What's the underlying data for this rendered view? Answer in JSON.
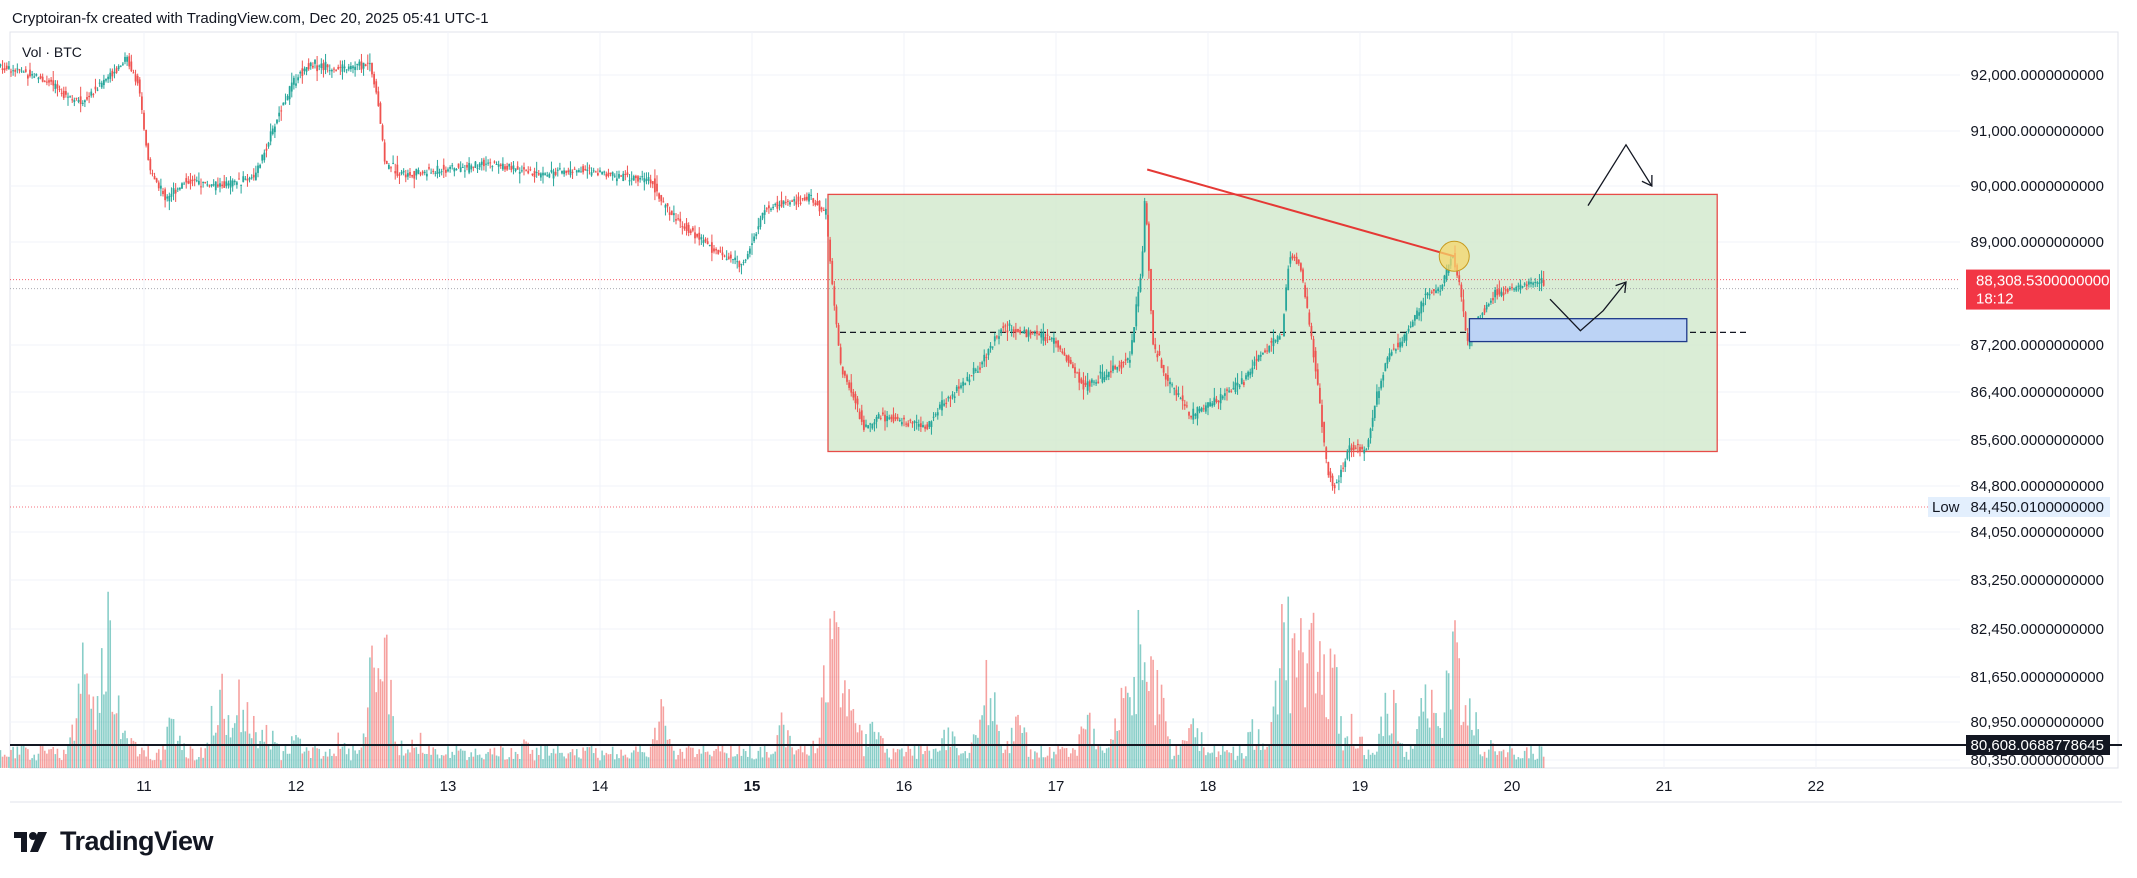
{
  "header": {
    "title": "Cryptoiran-fx created with TradingView.com, Dec 20, 2025 05:41 UTC-1"
  },
  "volume_label": "Vol · BTC",
  "brand": {
    "name": "TradingView"
  },
  "colors": {
    "up": "#26a69a",
    "down": "#ef5350",
    "zone_fill": "#d6ecd2",
    "zone_border": "#e53935",
    "demand_fill": "#bcd3f5",
    "demand_border": "#1e3a8a",
    "price_badge": "#f23645",
    "low_badge": "#e3effd",
    "circle": "#f5d66a"
  },
  "chart_data": {
    "type": "candlestick",
    "symbol": "BTC",
    "x_axis": {
      "ticks": [
        "11",
        "12",
        "13",
        "14",
        "15",
        "16",
        "17",
        "18",
        "19",
        "20",
        "21",
        "22"
      ]
    },
    "y_axis": {
      "ticks": [
        "92,000.0000000000",
        "91,000.0000000000",
        "90,000.0000000000",
        "89,000.0000000000",
        "87,200.0000000000",
        "86,400.0000000000",
        "85,600.0000000000",
        "84,800.0000000000",
        "84,050.0000000000",
        "83,250.0000000000",
        "82,450.0000000000",
        "81,650.0000000000",
        "80,950.0000000000",
        "80,350.0000000000"
      ]
    },
    "last_price": {
      "value": "88,308.5300000000",
      "countdown": "18:12"
    },
    "low": {
      "label": "Low",
      "value": "84,450.0100000000"
    },
    "horizontal_line": {
      "value": "80,608.0688778645"
    },
    "price_path": [
      [
        10.0,
        92200
      ],
      [
        10.3,
        92000
      ],
      [
        10.6,
        91500
      ],
      [
        10.9,
        92300
      ],
      [
        10.97,
        91900
      ],
      [
        11.05,
        90300
      ],
      [
        11.15,
        89800
      ],
      [
        11.3,
        90100
      ],
      [
        11.5,
        90000
      ],
      [
        11.6,
        90050
      ],
      [
        11.75,
        90200
      ],
      [
        11.9,
        91300
      ],
      [
        12.0,
        91900
      ],
      [
        12.1,
        92200
      ],
      [
        12.3,
        92100
      ],
      [
        12.5,
        92200
      ],
      [
        12.55,
        91600
      ],
      [
        12.6,
        90400
      ],
      [
        12.75,
        90200
      ],
      [
        13.0,
        90300
      ],
      [
        13.3,
        90400
      ],
      [
        13.6,
        90200
      ],
      [
        13.9,
        90300
      ],
      [
        14.1,
        90200
      ],
      [
        14.35,
        90100
      ],
      [
        14.45,
        89600
      ],
      [
        14.6,
        89200
      ],
      [
        14.8,
        88800
      ],
      [
        14.95,
        88600
      ],
      [
        15.0,
        88900
      ],
      [
        15.1,
        89600
      ],
      [
        15.25,
        89700
      ],
      [
        15.4,
        89800
      ],
      [
        15.5,
        89500
      ],
      [
        15.55,
        88000
      ],
      [
        15.6,
        86800
      ],
      [
        15.7,
        86200
      ],
      [
        15.75,
        85800
      ],
      [
        15.85,
        86000
      ],
      [
        16.0,
        85900
      ],
      [
        16.15,
        85800
      ],
      [
        16.3,
        86300
      ],
      [
        16.5,
        86800
      ],
      [
        16.65,
        87500
      ],
      [
        16.85,
        87400
      ],
      [
        17.0,
        87300
      ],
      [
        17.2,
        86500
      ],
      [
        17.35,
        86700
      ],
      [
        17.5,
        87000
      ],
      [
        17.58,
        88600
      ],
      [
        17.6,
        89900
      ],
      [
        17.65,
        87200
      ],
      [
        17.75,
        86600
      ],
      [
        17.9,
        86000
      ],
      [
        18.1,
        86300
      ],
      [
        18.25,
        86600
      ],
      [
        18.35,
        87000
      ],
      [
        18.5,
        87400
      ],
      [
        18.55,
        88800
      ],
      [
        18.62,
        88600
      ],
      [
        18.7,
        87200
      ],
      [
        18.75,
        86200
      ],
      [
        18.8,
        85000
      ],
      [
        18.85,
        84800
      ],
      [
        18.95,
        85500
      ],
      [
        19.05,
        85400
      ],
      [
        19.12,
        86300
      ],
      [
        19.2,
        87000
      ],
      [
        19.3,
        87300
      ],
      [
        19.45,
        88100
      ],
      [
        19.55,
        88200
      ],
      [
        19.62,
        88800
      ],
      [
        19.68,
        88100
      ],
      [
        19.72,
        87200
      ],
      [
        19.8,
        87700
      ],
      [
        19.9,
        88100
      ],
      [
        20.05,
        88200
      ],
      [
        20.15,
        88300
      ],
      [
        20.22,
        88300
      ]
    ],
    "zones": {
      "range_box": {
        "x_start": 15.5,
        "x_end": 21.35,
        "y_low": 85400,
        "y_high": 89850
      },
      "demand_box": {
        "x_start": 19.72,
        "x_end": 21.15,
        "y_low": 87260,
        "y_high": 87660
      },
      "dashed_level": {
        "x_start": 15.5,
        "x_end": 21.35,
        "value": 87420
      }
    },
    "trendline": {
      "start": [
        17.6,
        90300
      ],
      "end": [
        19.62,
        88750
      ]
    },
    "projection_path": [
      [
        20.25,
        88000
      ],
      [
        20.45,
        87450
      ],
      [
        20.6,
        87800
      ],
      [
        20.75,
        88300
      ]
    ],
    "projection_path_2": [
      [
        20.5,
        89650
      ],
      [
        20.75,
        90750
      ],
      [
        20.92,
        90000
      ]
    ],
    "highlight_circle": {
      "x": 19.62,
      "y": 88750
    },
    "volume_profile": [
      [
        10.0,
        0.2
      ],
      [
        10.6,
        0.65
      ],
      [
        10.75,
        1.0
      ],
      [
        10.9,
        0.25
      ],
      [
        11.2,
        0.3
      ],
      [
        11.5,
        0.5
      ],
      [
        11.65,
        0.55
      ],
      [
        11.8,
        0.3
      ],
      [
        12.0,
        0.2
      ],
      [
        12.3,
        0.2
      ],
      [
        12.55,
        1.0
      ],
      [
        12.6,
        0.5
      ],
      [
        12.8,
        0.2
      ],
      [
        13.5,
        0.15
      ],
      [
        14.4,
        0.35
      ],
      [
        15.2,
        0.3
      ],
      [
        15.5,
        0.6
      ],
      [
        15.55,
        1.05
      ],
      [
        15.65,
        0.45
      ],
      [
        15.8,
        0.3
      ],
      [
        16.3,
        0.25
      ],
      [
        16.55,
        0.65
      ],
      [
        16.75,
        0.3
      ],
      [
        17.2,
        0.3
      ],
      [
        17.45,
        0.45
      ],
      [
        17.58,
        1.05
      ],
      [
        17.65,
        0.6
      ],
      [
        17.9,
        0.3
      ],
      [
        18.3,
        0.25
      ],
      [
        18.5,
        1.05
      ],
      [
        18.6,
        0.8
      ],
      [
        18.72,
        1.1
      ],
      [
        18.8,
        0.7
      ],
      [
        18.95,
        0.3
      ],
      [
        19.2,
        0.45
      ],
      [
        19.45,
        0.5
      ],
      [
        19.62,
        0.85
      ],
      [
        19.7,
        0.5
      ],
      [
        19.85,
        0.15
      ],
      [
        20.22,
        0.1
      ]
    ]
  }
}
